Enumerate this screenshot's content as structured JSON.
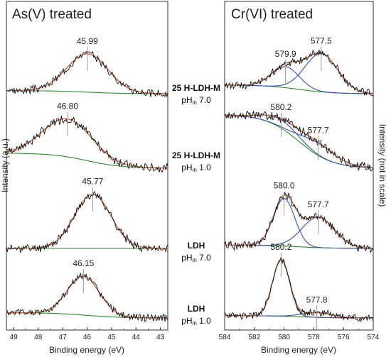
{
  "colors": {
    "raw": "#111111",
    "envelope": "#c0633a",
    "component": "#3a50a8",
    "background": "#2f8a2f",
    "frame": "#333333",
    "marker": "#999999"
  },
  "labels": {
    "left_title": "As(V) treated",
    "right_title": "Cr(VI) treated",
    "left_ylabel": "Intensity (a.u.)",
    "right_ylabel": "Intensity (not in scale)",
    "left_xlabel": "Binding energy (eV)",
    "right_xlabel": "Binding energy (eV)"
  },
  "samples": [
    {
      "name": "25 H-LDH-M",
      "ph_prefix": "pH",
      "ph_sub": "in",
      "ph_value": " 7.0"
    },
    {
      "name": "25 H-LDH-M",
      "ph_prefix": "pH",
      "ph_sub": "in",
      "ph_value": " 1.0"
    },
    {
      "name": "LDH",
      "ph_prefix": "pH",
      "ph_sub": "in",
      "ph_value": " 7.0"
    },
    {
      "name": "LDH",
      "ph_prefix": "pH",
      "ph_sub": "in",
      "ph_value": " 1.0"
    }
  ],
  "chart_data": [
    {
      "type": "line",
      "title": "As(V) treated",
      "xlabel": "Binding energy (eV)",
      "ylabel": "Intensity (a.u.)",
      "xlim": [
        49.3,
        42.7
      ],
      "x_reversed": true,
      "x_ticks": [
        49,
        48,
        47,
        46,
        45,
        44,
        43
      ],
      "grid": false,
      "panels": [
        {
          "sample": "25 H-LDH-M pHin 7.0",
          "peak_labels": [
            "45.99"
          ],
          "peaks": [
            {
              "center": 45.99,
              "fwhm": 2.0,
              "height": 0.62
            }
          ],
          "background": [
            0.05,
            0.0
          ],
          "noise_seed": 3
        },
        {
          "sample": "25 H-LDH-M pHin 1.0",
          "peak_labels": [
            "46.80"
          ],
          "peaks": [
            {
              "center": 46.8,
              "fwhm": 2.4,
              "height": 0.55
            }
          ],
          "background": [
            0.22,
            0.0
          ],
          "noise_seed": 7
        },
        {
          "sample": "LDH pHin 7.0",
          "peak_labels": [
            "45.77"
          ],
          "peaks": [
            {
              "center": 45.77,
              "fwhm": 1.75,
              "height": 0.82
            }
          ],
          "background": [
            0.0,
            0.0
          ],
          "noise_seed": 11
        },
        {
          "sample": "LDH pHin 1.0",
          "peak_labels": [
            "46.15"
          ],
          "peaks": [
            {
              "center": 46.15,
              "fwhm": 1.55,
              "height": 0.66
            }
          ],
          "background": [
            0.09,
            0.0
          ],
          "noise_seed": 5
        }
      ]
    },
    {
      "type": "line",
      "title": "Cr(VI) treated",
      "xlabel": "Binding energy (eV)",
      "ylabel": "Intensity (not in scale)",
      "xlim": [
        584,
        574
      ],
      "x_reversed": true,
      "x_ticks": [
        584,
        582,
        580,
        578,
        576,
        574
      ],
      "grid": false,
      "panels": [
        {
          "sample": "25 H-LDH-M pHin 7.0",
          "peak_labels": [
            "579.9",
            "577.5"
          ],
          "peaks": [
            {
              "center": 579.9,
              "fwhm": 2.2,
              "height": 0.34
            },
            {
              "center": 577.5,
              "fwhm": 2.6,
              "height": 0.62
            }
          ],
          "background": [
            0.14,
            0.0
          ],
          "noise_seed": 13
        },
        {
          "sample": "25 H-LDH-M pHin 1.0",
          "peak_labels": [
            "580.2",
            "577.7"
          ],
          "peaks": [
            {
              "center": 580.2,
              "fwhm": 2.8,
              "height": 0.12
            },
            {
              "center": 577.7,
              "fwhm": 2.8,
              "height": 0.18
            }
          ],
          "background": [
            0.78,
            0.0
          ],
          "noise_seed": 17
        },
        {
          "sample": "LDH pHin 7.0",
          "peak_labels": [
            "580.0",
            "577.7"
          ],
          "peaks": [
            {
              "center": 580.0,
              "fwhm": 1.7,
              "height": 0.72
            },
            {
              "center": 577.7,
              "fwhm": 2.6,
              "height": 0.46
            }
          ],
          "background": [
            0.05,
            0.0
          ],
          "noise_seed": 19
        },
        {
          "sample": "LDH pHin 1.0",
          "peak_labels": [
            "580.2",
            "577.8"
          ],
          "peaks": [
            {
              "center": 580.2,
              "fwhm": 1.35,
              "height": 0.96
            },
            {
              "center": 577.8,
              "fwhm": 2.4,
              "height": 0.08
            }
          ],
          "background": [
            0.04,
            0.0
          ],
          "noise_seed": 23
        }
      ]
    }
  ]
}
